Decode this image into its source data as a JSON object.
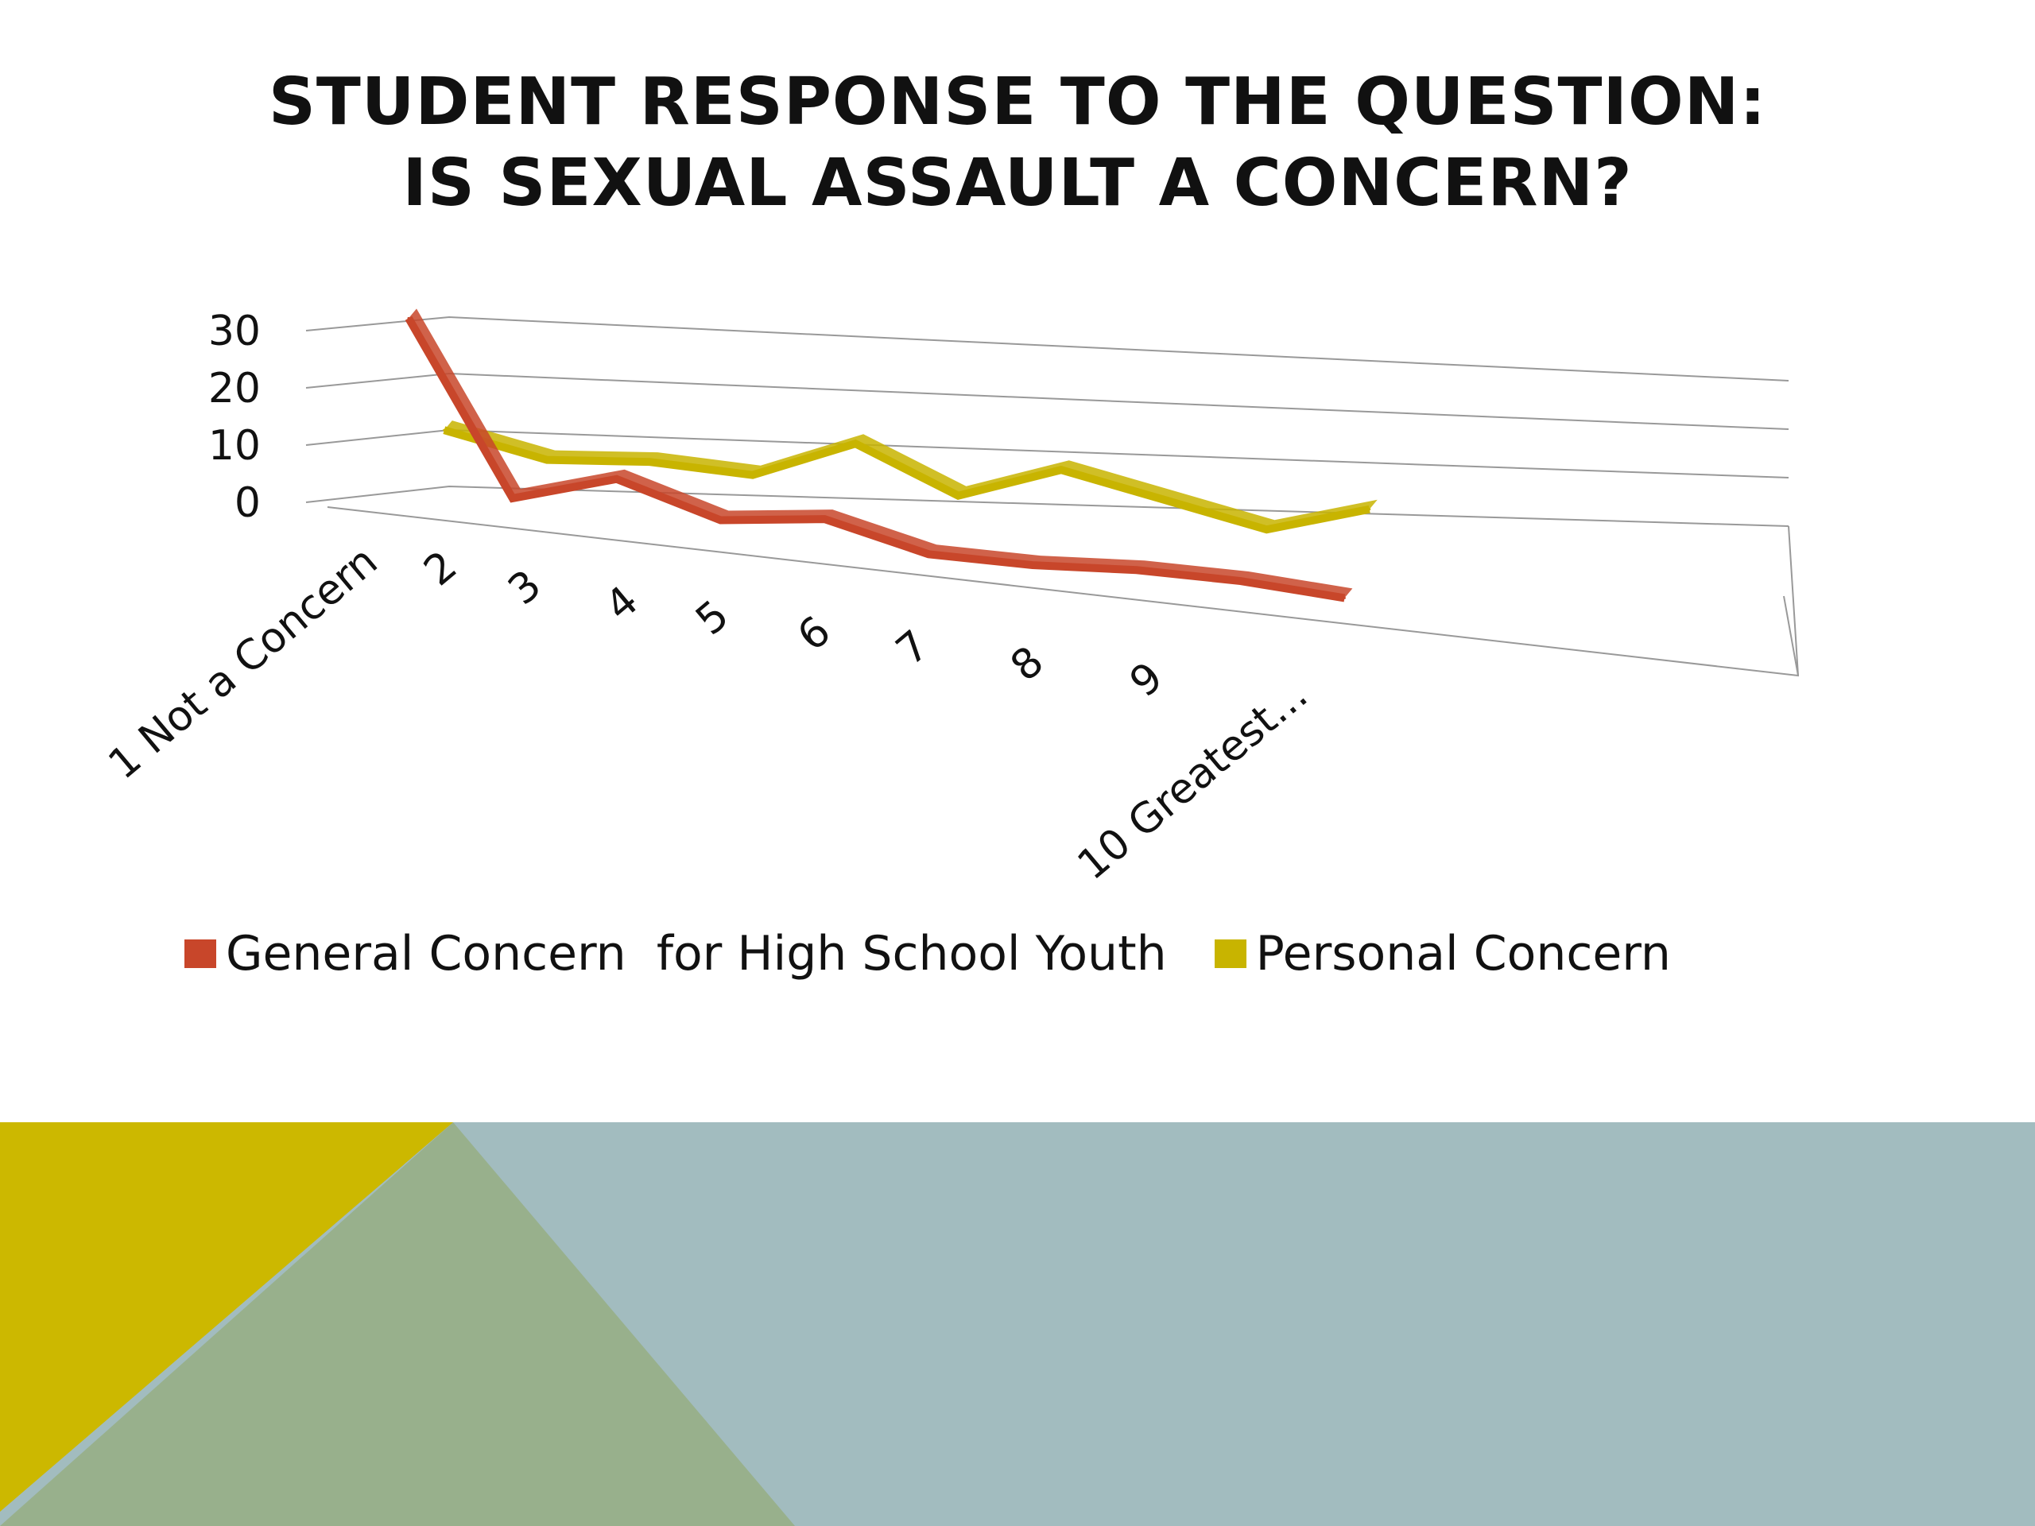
{
  "title_lines": [
    "STUDENT RESPONSE TO THE QUESTION:",
    "IS SEXUAL ASSAULT A CONCERN?"
  ],
  "colors": {
    "general": "#c8462a",
    "personal": "#c8b400",
    "gridline": "#999999",
    "footer_yellow": "#ccb800",
    "footer_green": "#98b08c",
    "footer_blue": "#a2bcbf"
  },
  "chart_data": {
    "type": "line",
    "view": "3d",
    "title": "",
    "xlabel": "",
    "ylabel": "",
    "categories": [
      "1 Not a Concern",
      "2",
      "3",
      "4",
      "5",
      "6",
      "7",
      "8",
      "9",
      "10 Greatest..."
    ],
    "y_ticks": [
      "0",
      "10",
      "20",
      "30"
    ],
    "ylim": [
      0,
      30
    ],
    "grid": true,
    "legend_position": "bottom",
    "series": [
      {
        "name": "General Concern  for High School Youth",
        "color": "#c8462a",
        "values": [
          30,
          2,
          7,
          2,
          4,
          0,
          0,
          1,
          1,
          0
        ]
      },
      {
        "name": "Personal Concern",
        "color": "#c8b400",
        "values": [
          11,
          7,
          8,
          7,
          14,
          6,
          12,
          8,
          4,
          9
        ]
      }
    ]
  }
}
